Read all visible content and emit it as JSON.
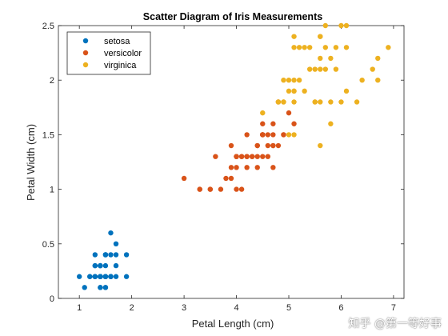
{
  "watermark": "知乎 @第一等好事",
  "chart_data": {
    "type": "scatter",
    "title": "Scatter Diagram of Iris Measurements",
    "xlabel": "Petal Length (cm)",
    "ylabel": "Petal Width (cm)",
    "xlim": [
      0.6,
      7.2
    ],
    "ylim": [
      0,
      2.5
    ],
    "xticks": [
      1,
      2,
      3,
      4,
      5,
      6,
      7
    ],
    "yticks": [
      0,
      0.5,
      1,
      1.5,
      2,
      2.5
    ],
    "xtick_labels": [
      "1",
      "2",
      "3",
      "4",
      "5",
      "6",
      "7"
    ],
    "ytick_labels": [
      "0",
      "0.5",
      "1",
      "1.5",
      "2",
      "2.5"
    ],
    "grid": false,
    "legend_position": "top-left",
    "series": [
      {
        "name": "setosa",
        "color": "#0072BD",
        "points": [
          [
            1.4,
            0.2
          ],
          [
            1.4,
            0.2
          ],
          [
            1.3,
            0.2
          ],
          [
            1.5,
            0.2
          ],
          [
            1.4,
            0.2
          ],
          [
            1.7,
            0.4
          ],
          [
            1.4,
            0.3
          ],
          [
            1.5,
            0.2
          ],
          [
            1.4,
            0.2
          ],
          [
            1.5,
            0.1
          ],
          [
            1.5,
            0.2
          ],
          [
            1.6,
            0.2
          ],
          [
            1.4,
            0.1
          ],
          [
            1.1,
            0.1
          ],
          [
            1.2,
            0.2
          ],
          [
            1.5,
            0.4
          ],
          [
            1.3,
            0.4
          ],
          [
            1.4,
            0.3
          ],
          [
            1.7,
            0.3
          ],
          [
            1.5,
            0.3
          ],
          [
            1.7,
            0.2
          ],
          [
            1.5,
            0.4
          ],
          [
            1.0,
            0.2
          ],
          [
            1.7,
            0.5
          ],
          [
            1.9,
            0.2
          ],
          [
            1.6,
            0.2
          ],
          [
            1.6,
            0.4
          ],
          [
            1.5,
            0.2
          ],
          [
            1.4,
            0.2
          ],
          [
            1.6,
            0.2
          ],
          [
            1.6,
            0.2
          ],
          [
            1.5,
            0.4
          ],
          [
            1.5,
            0.1
          ],
          [
            1.4,
            0.2
          ],
          [
            1.5,
            0.2
          ],
          [
            1.2,
            0.2
          ],
          [
            1.3,
            0.2
          ],
          [
            1.4,
            0.1
          ],
          [
            1.3,
            0.2
          ],
          [
            1.5,
            0.2
          ],
          [
            1.3,
            0.3
          ],
          [
            1.3,
            0.3
          ],
          [
            1.3,
            0.2
          ],
          [
            1.6,
            0.6
          ],
          [
            1.9,
            0.4
          ],
          [
            1.4,
            0.3
          ],
          [
            1.6,
            0.2
          ],
          [
            1.4,
            0.2
          ],
          [
            1.5,
            0.2
          ],
          [
            1.4,
            0.2
          ]
        ]
      },
      {
        "name": "versicolor",
        "color": "#D95319",
        "points": [
          [
            4.7,
            1.4
          ],
          [
            4.5,
            1.5
          ],
          [
            4.9,
            1.5
          ],
          [
            4.0,
            1.3
          ],
          [
            4.6,
            1.5
          ],
          [
            4.5,
            1.3
          ],
          [
            4.7,
            1.6
          ],
          [
            3.3,
            1.0
          ],
          [
            4.6,
            1.3
          ],
          [
            3.9,
            1.4
          ],
          [
            3.5,
            1.0
          ],
          [
            4.2,
            1.5
          ],
          [
            4.0,
            1.0
          ],
          [
            4.7,
            1.4
          ],
          [
            3.6,
            1.3
          ],
          [
            4.4,
            1.4
          ],
          [
            4.5,
            1.5
          ],
          [
            4.1,
            1.0
          ],
          [
            4.5,
            1.5
          ],
          [
            3.9,
            1.1
          ],
          [
            4.8,
            1.8
          ],
          [
            4.0,
            1.3
          ],
          [
            4.9,
            1.5
          ],
          [
            4.7,
            1.2
          ],
          [
            4.3,
            1.3
          ],
          [
            4.4,
            1.4
          ],
          [
            4.8,
            1.4
          ],
          [
            5.0,
            1.7
          ],
          [
            4.5,
            1.5
          ],
          [
            3.5,
            1.0
          ],
          [
            3.8,
            1.1
          ],
          [
            3.7,
            1.0
          ],
          [
            3.9,
            1.2
          ],
          [
            5.1,
            1.6
          ],
          [
            4.5,
            1.5
          ],
          [
            4.5,
            1.6
          ],
          [
            4.7,
            1.5
          ],
          [
            4.4,
            1.3
          ],
          [
            4.1,
            1.3
          ],
          [
            4.0,
            1.3
          ],
          [
            4.4,
            1.2
          ],
          [
            4.6,
            1.4
          ],
          [
            4.0,
            1.2
          ],
          [
            3.3,
            1.0
          ],
          [
            4.2,
            1.3
          ],
          [
            4.2,
            1.2
          ],
          [
            4.2,
            1.3
          ],
          [
            4.3,
            1.3
          ],
          [
            3.0,
            1.1
          ],
          [
            4.1,
            1.3
          ]
        ]
      },
      {
        "name": "virginica",
        "color": "#EDB120",
        "points": [
          [
            6.0,
            2.5
          ],
          [
            5.1,
            1.9
          ],
          [
            5.9,
            2.1
          ],
          [
            5.6,
            1.8
          ],
          [
            5.8,
            2.2
          ],
          [
            6.6,
            2.1
          ],
          [
            4.5,
            1.7
          ],
          [
            6.3,
            1.8
          ],
          [
            5.8,
            1.8
          ],
          [
            6.1,
            2.5
          ],
          [
            5.1,
            2.0
          ],
          [
            5.3,
            1.9
          ],
          [
            5.5,
            2.1
          ],
          [
            5.0,
            2.0
          ],
          [
            5.1,
            2.4
          ],
          [
            5.3,
            2.3
          ],
          [
            5.5,
            1.8
          ],
          [
            6.7,
            2.2
          ],
          [
            6.9,
            2.3
          ],
          [
            5.0,
            1.5
          ],
          [
            5.7,
            2.3
          ],
          [
            4.9,
            2.0
          ],
          [
            6.7,
            2.0
          ],
          [
            4.9,
            1.8
          ],
          [
            5.7,
            2.1
          ],
          [
            6.0,
            1.8
          ],
          [
            4.8,
            1.8
          ],
          [
            4.9,
            1.8
          ],
          [
            5.6,
            2.1
          ],
          [
            5.8,
            1.6
          ],
          [
            6.1,
            1.9
          ],
          [
            6.4,
            2.0
          ],
          [
            5.6,
            2.2
          ],
          [
            5.1,
            1.5
          ],
          [
            5.6,
            1.4
          ],
          [
            6.1,
            2.3
          ],
          [
            5.6,
            2.4
          ],
          [
            5.5,
            1.8
          ],
          [
            4.8,
            1.8
          ],
          [
            5.4,
            2.1
          ],
          [
            5.6,
            2.4
          ],
          [
            5.1,
            2.3
          ],
          [
            5.1,
            1.9
          ],
          [
            5.9,
            2.3
          ],
          [
            5.7,
            2.5
          ],
          [
            5.2,
            2.3
          ],
          [
            5.0,
            1.9
          ],
          [
            5.2,
            2.0
          ],
          [
            5.4,
            2.3
          ],
          [
            5.1,
            1.8
          ]
        ]
      }
    ]
  }
}
